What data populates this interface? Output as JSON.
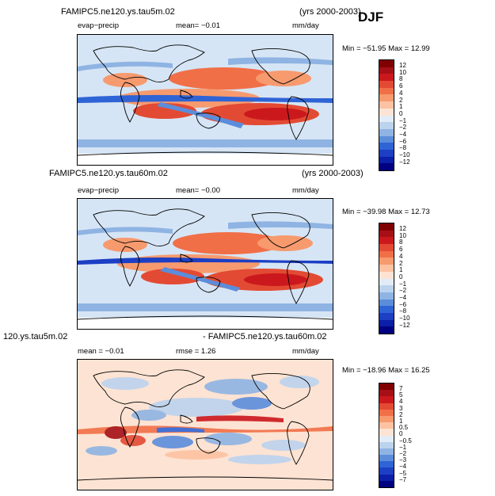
{
  "season": "DJF",
  "panels": [
    {
      "title_left": "FAMIPC5.ne120.ys.tau5m.02",
      "title_right": "(yrs 2000-2003)",
      "variable": "evap−precip",
      "mean_text": "mean=  −0.01",
      "units": "mm/day",
      "min_max": "Min = −51.95  Max =   12.99",
      "colorbar_labels": [
        "12",
        "10",
        "8",
        "6",
        "4",
        "2",
        "1",
        "0",
        "−1",
        "−2",
        "−4",
        "−6",
        "−8",
        "−10",
        "−12"
      ]
    },
    {
      "title_left": "FAMIPC5.ne120.ys.tau60m.02",
      "title_right": "(yrs 2000-2003)",
      "variable": "evap−precip",
      "mean_text": "mean=  −0.00",
      "units": "mm/day",
      "min_max": "Min = −39.98  Max =   12.73",
      "colorbar_labels": [
        "12",
        "10",
        "8",
        "6",
        "4",
        "2",
        "1",
        "0",
        "−1",
        "−2",
        "−4",
        "−6",
        "−8",
        "−10",
        "−12"
      ]
    },
    {
      "title_left": "120.ys.tau5m.02",
      "title_right": "- FAMIPC5.ne120.ys.tau60m.02",
      "mean_text": "mean =  −0.01",
      "rmse_text": "rmse =     1.26",
      "units": "mm/day",
      "min_max": "Min = −18.96  Max =   16.25",
      "colorbar_labels": [
        "7",
        "5",
        "4",
        "3",
        "2",
        "1",
        "0.5",
        "0",
        "−0.5",
        "−1",
        "−2",
        "−3",
        "−4",
        "−5",
        "−7"
      ]
    }
  ],
  "colors": {
    "scale": [
      "#800000",
      "#a50f15",
      "#cb181d",
      "#e34a33",
      "#f16f47",
      "#f79a6e",
      "#fdc2a2",
      "#fde3d3",
      "#e2ecf8",
      "#bcd3ee",
      "#8fb4e3",
      "#5b8ddb",
      "#2f64d6",
      "#1c3fc4",
      "#0b1fa8",
      "#000080"
    ],
    "land": "#fde3d3",
    "coast": "#000000"
  }
}
